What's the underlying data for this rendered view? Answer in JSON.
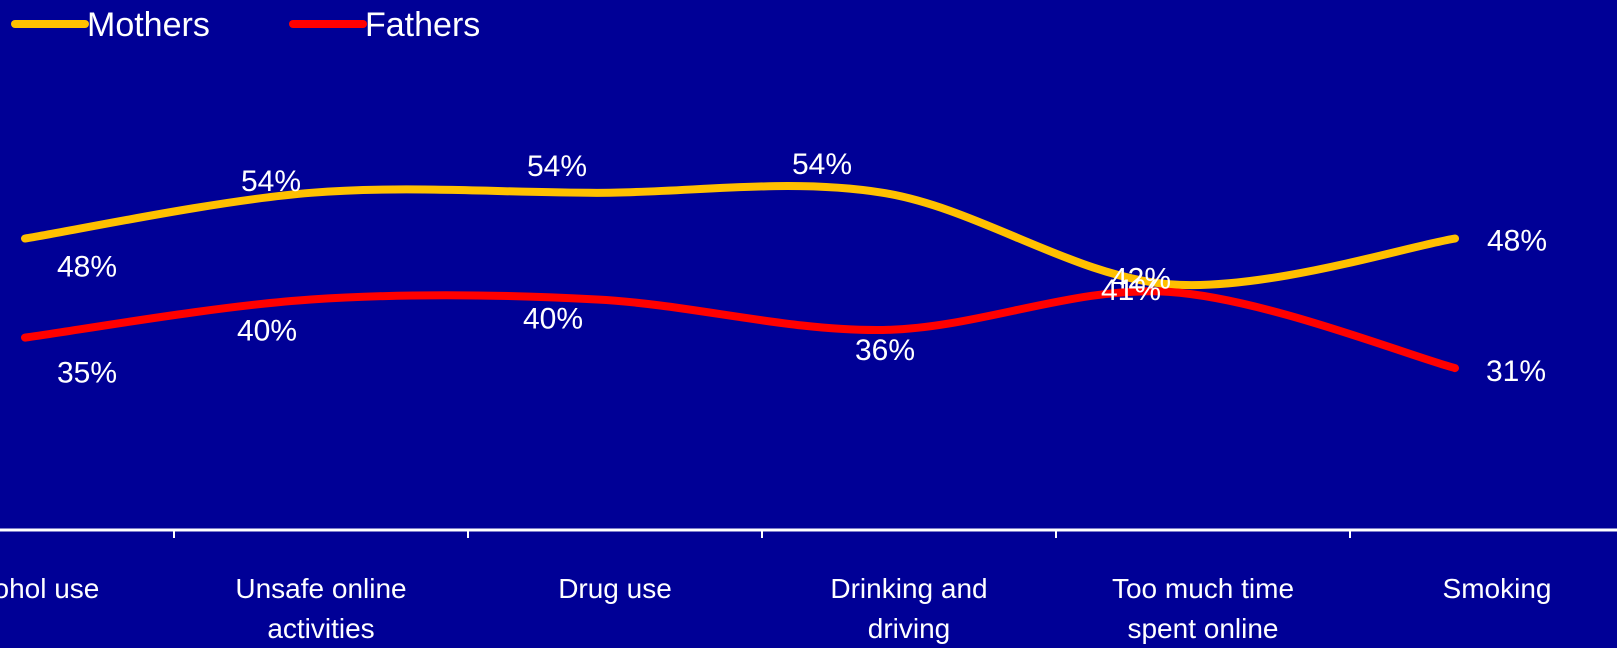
{
  "chart_data": {
    "type": "line",
    "categories": [
      "Alcohol use",
      "Unsafe online activities",
      "Drug use",
      "Drinking and driving",
      "Too much time spent online",
      "Smoking"
    ],
    "category_lines": [
      [
        "Alcohol use"
      ],
      [
        "Unsafe online",
        "activities"
      ],
      [
        "Drug use"
      ],
      [
        "Drinking and",
        "driving"
      ],
      [
        "Too much time",
        "spent online"
      ],
      [
        "Smoking"
      ]
    ],
    "series": [
      {
        "name": "Mothers",
        "values": [
          48,
          54,
          54,
          54,
          42,
          48
        ],
        "labels": [
          "48%",
          "54%",
          "54%",
          "54%",
          "42%",
          "48%"
        ],
        "color": "#FFC000"
      },
      {
        "name": "Fathers",
        "values": [
          35,
          40,
          40,
          36,
          41,
          31
        ],
        "labels": [
          "35%",
          "40%",
          "40%",
          "36%",
          "41%",
          "31%"
        ],
        "color": "#FF0000"
      }
    ],
    "ylim": [
      0,
      80
    ],
    "legend_position": "top-left",
    "grid": false,
    "axis_color": "#FFFFFF",
    "background": "#000096"
  }
}
